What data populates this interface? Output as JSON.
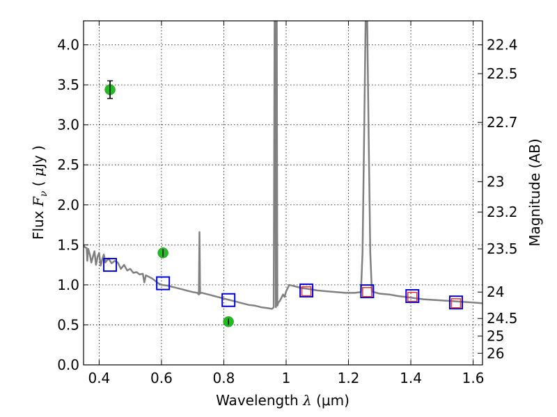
{
  "chart_data": {
    "type": "scatter",
    "xlabel": "Wavelength  λ (μm)",
    "xlabel_parts": {
      "prefix": "Wavelength  ",
      "symbol": "λ",
      "suffix": " (μm)"
    },
    "ylabel": "Flux  Fν  ( μJy )",
    "ylabel_parts": {
      "prefix": "Flux  ",
      "symbol": "F",
      "subscript": "ν",
      "suffix": "  ( ",
      "unit_symbol": "μ",
      "unit": "Jy )"
    },
    "y2label": "Magnitude (AB)",
    "xlim": [
      0.35,
      1.63
    ],
    "ylim": [
      0.0,
      4.3
    ],
    "grid": true,
    "xticks": [
      {
        "value": 0.4,
        "label": "0.4"
      },
      {
        "value": 0.6,
        "label": "0.6"
      },
      {
        "value": 0.8,
        "label": "0.8"
      },
      {
        "value": 1.0,
        "label": "1"
      },
      {
        "value": 1.2,
        "label": "1.2"
      },
      {
        "value": 1.4,
        "label": "1.4"
      },
      {
        "value": 1.6,
        "label": "1.6"
      }
    ],
    "yticks": [
      {
        "value": 0.0,
        "label": "0.0"
      },
      {
        "value": 0.5,
        "label": "0.5"
      },
      {
        "value": 1.0,
        "label": "1.0"
      },
      {
        "value": 1.5,
        "label": "1.5"
      },
      {
        "value": 2.0,
        "label": "2.0"
      },
      {
        "value": 2.5,
        "label": "2.5"
      },
      {
        "value": 3.0,
        "label": "3.0"
      },
      {
        "value": 3.5,
        "label": "3.5"
      },
      {
        "value": 4.0,
        "label": "4.0"
      }
    ],
    "y2ticks": [
      {
        "label": "22.4",
        "flux": 4.0
      },
      {
        "label": "22.5",
        "flux": 3.64
      },
      {
        "label": "22.7",
        "flux": 3.03
      },
      {
        "label": "23",
        "flux": 2.29
      },
      {
        "label": "23.2",
        "flux": 1.91
      },
      {
        "label": "23.5",
        "flux": 1.45
      },
      {
        "label": "24",
        "flux": 0.91
      },
      {
        "label": "24.5",
        "flux": 0.58
      },
      {
        "label": "25",
        "flux": 0.36
      },
      {
        "label": "26",
        "flux": 0.145
      }
    ],
    "series": [
      {
        "name": "model_spectrum",
        "style": "line",
        "color": "#808080",
        "x": [
          0.35,
          0.355,
          0.36,
          0.362,
          0.365,
          0.37,
          0.375,
          0.38,
          0.385,
          0.39,
          0.395,
          0.4,
          0.405,
          0.41,
          0.415,
          0.42,
          0.43,
          0.44,
          0.45,
          0.46,
          0.47,
          0.48,
          0.49,
          0.5,
          0.51,
          0.52,
          0.53,
          0.54,
          0.545,
          0.55,
          0.56,
          0.57,
          0.58,
          0.59,
          0.6,
          0.62,
          0.64,
          0.66,
          0.68,
          0.7,
          0.715,
          0.72,
          0.722,
          0.724,
          0.726,
          0.73,
          0.75,
          0.78,
          0.8,
          0.82,
          0.84,
          0.86,
          0.88,
          0.9,
          0.92,
          0.94,
          0.955,
          0.96,
          0.963,
          0.965,
          0.967,
          0.97,
          0.972,
          0.975,
          0.98,
          0.985,
          0.99,
          0.995,
          1.0,
          1.01,
          1.03,
          1.05,
          1.07,
          1.1,
          1.13,
          1.16,
          1.19,
          1.22,
          1.24,
          1.245,
          1.25,
          1.255,
          1.26,
          1.265,
          1.27,
          1.275,
          1.28,
          1.3,
          1.33,
          1.36,
          1.4,
          1.44,
          1.48,
          1.52,
          1.56,
          1.6,
          1.63
        ],
        "y": [
          1.49,
          1.47,
          1.46,
          1.3,
          1.45,
          1.38,
          1.28,
          1.35,
          1.42,
          1.25,
          1.35,
          1.4,
          1.24,
          1.32,
          1.38,
          1.28,
          1.33,
          1.27,
          1.3,
          1.28,
          1.2,
          1.25,
          1.18,
          1.2,
          1.15,
          1.16,
          1.13,
          1.14,
          1.03,
          1.12,
          1.1,
          1.08,
          1.05,
          1.02,
          1.0,
          0.99,
          0.97,
          0.95,
          0.93,
          0.91,
          0.9,
          0.88,
          1.66,
          0.89,
          0.9,
          0.9,
          0.88,
          0.85,
          0.83,
          0.81,
          0.79,
          0.77,
          0.75,
          0.74,
          0.72,
          0.71,
          0.7,
          0.72,
          4.3,
          4.3,
          0.72,
          4.3,
          0.74,
          0.78,
          0.8,
          0.84,
          0.88,
          0.85,
          0.92,
          1.0,
          0.98,
          0.96,
          0.95,
          0.93,
          0.92,
          0.91,
          0.9,
          0.9,
          0.91,
          1.4,
          2.8,
          4.3,
          4.3,
          2.8,
          1.4,
          0.92,
          0.91,
          0.89,
          0.88,
          0.86,
          0.84,
          0.82,
          0.81,
          0.8,
          0.79,
          0.78,
          0.77
        ]
      },
      {
        "name": "observed_photometry",
        "style": "points",
        "color": "#22bb22",
        "x": [
          0.435,
          0.605,
          0.815
        ],
        "y": [
          3.44,
          1.4,
          0.54
        ],
        "yerr": [
          0.11,
          0.05,
          0.04
        ]
      },
      {
        "name": "model_photometry",
        "style": "open_squares",
        "color": "#0000dd",
        "x": [
          0.435,
          0.605,
          0.815,
          1.065,
          1.26,
          1.405,
          1.545
        ],
        "y": [
          1.25,
          1.02,
          0.81,
          0.93,
          0.92,
          0.86,
          0.78
        ]
      },
      {
        "name": "observed_nir",
        "style": "open_squares",
        "color": "#dd3333",
        "x": [
          1.065,
          1.26,
          1.405,
          1.545
        ],
        "y": [
          0.92,
          0.91,
          0.85,
          0.77
        ]
      }
    ]
  }
}
